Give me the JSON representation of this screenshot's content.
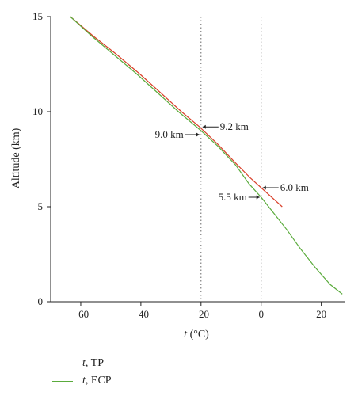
{
  "chart_data": {
    "type": "line",
    "xlabel_var": "t",
    "xlabel_unit": "(°C)",
    "ylabel": "Altitude (km)",
    "xlim": [
      -70,
      28
    ],
    "ylim": [
      0,
      15
    ],
    "xticks": [
      -60,
      -40,
      -20,
      0,
      20
    ],
    "yticks": [
      0,
      5,
      10,
      15
    ],
    "series": [
      {
        "name_var": "t",
        "name_rest": ", TP",
        "color": "#d9412b",
        "points": [
          [
            -63.5,
            15.0
          ],
          [
            -56,
            14.0
          ],
          [
            -48,
            13.0
          ],
          [
            -40.5,
            12.0
          ],
          [
            -33.5,
            11.0
          ],
          [
            -26.5,
            10.0
          ],
          [
            -20.5,
            9.2
          ],
          [
            -14.5,
            8.3
          ],
          [
            -8.5,
            7.3
          ],
          [
            -3.5,
            6.5
          ],
          [
            0,
            6.0
          ],
          [
            3.5,
            5.5
          ],
          [
            7,
            5.0
          ]
        ]
      },
      {
        "name_var": "t",
        "name_rest": ", ECP",
        "color": "#5aab3c",
        "points": [
          [
            -63.5,
            15.0
          ],
          [
            -56.5,
            14.0
          ],
          [
            -49,
            13.0
          ],
          [
            -41.5,
            12.0
          ],
          [
            -34.5,
            11.0
          ],
          [
            -27.5,
            10.0
          ],
          [
            -20,
            9.0
          ],
          [
            -14.5,
            8.2
          ],
          [
            -8.5,
            7.2
          ],
          [
            -4,
            6.2
          ],
          [
            0,
            5.5
          ],
          [
            4,
            4.7
          ],
          [
            8.5,
            3.8
          ],
          [
            13,
            2.8
          ],
          [
            18,
            1.8
          ],
          [
            23,
            0.9
          ],
          [
            27,
            0.4
          ]
        ]
      }
    ],
    "reference_lines_x": [
      -20,
      0
    ],
    "annotations": [
      {
        "label": "9.2 km",
        "x": -20,
        "y": 9.2
      },
      {
        "label": "9.0 km",
        "x": -20,
        "y": 9.0
      },
      {
        "label": "6.0 km",
        "x": 0,
        "y": 6.0
      },
      {
        "label": "5.5 km",
        "x": 0,
        "y": 5.5
      }
    ],
    "legend_position": "below"
  }
}
